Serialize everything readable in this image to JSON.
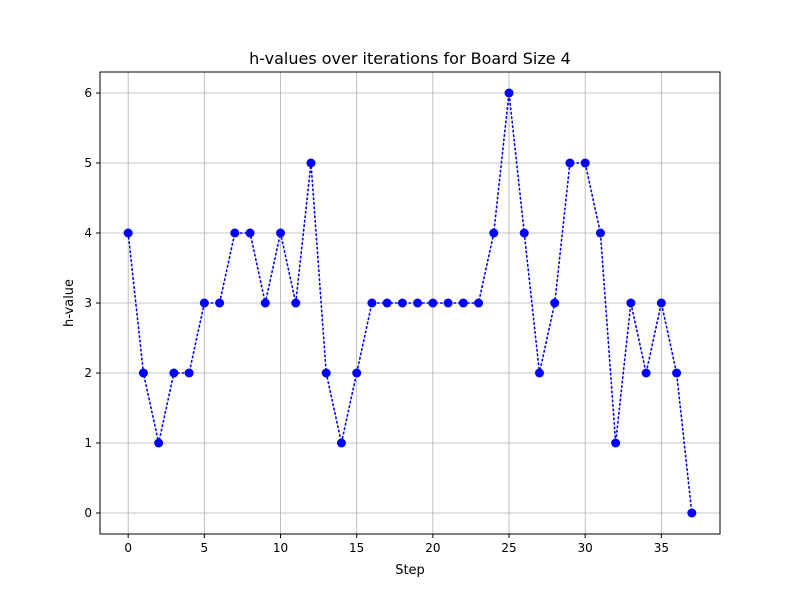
{
  "chart_data": {
    "type": "line",
    "title": "h-values over iterations for Board Size 4",
    "xlabel": "Step",
    "ylabel": "h-value",
    "x": [
      0,
      1,
      2,
      3,
      4,
      5,
      6,
      7,
      8,
      9,
      10,
      11,
      12,
      13,
      14,
      15,
      16,
      17,
      18,
      19,
      20,
      21,
      22,
      23,
      24,
      25,
      26,
      27,
      28,
      29,
      30,
      31,
      32,
      33,
      34,
      35,
      36,
      37
    ],
    "y": [
      4,
      2,
      1,
      2,
      2,
      3,
      3,
      4,
      4,
      3,
      4,
      3,
      5,
      2,
      1,
      2,
      3,
      3,
      3,
      3,
      3,
      3,
      3,
      3,
      4,
      6,
      4,
      2,
      3,
      5,
      5,
      4,
      1,
      3,
      2,
      3,
      2,
      0
    ],
    "xlim": [
      -1.85,
      38.85
    ],
    "ylim": [
      -0.3,
      6.3
    ],
    "xticks": [
      0,
      5,
      10,
      15,
      20,
      25,
      30,
      35
    ],
    "yticks": [
      0,
      1,
      2,
      3,
      4,
      5,
      6
    ],
    "grid": true,
    "legend": "none",
    "line_style": "dotted",
    "marker": "circle",
    "color": "#0000ff"
  }
}
